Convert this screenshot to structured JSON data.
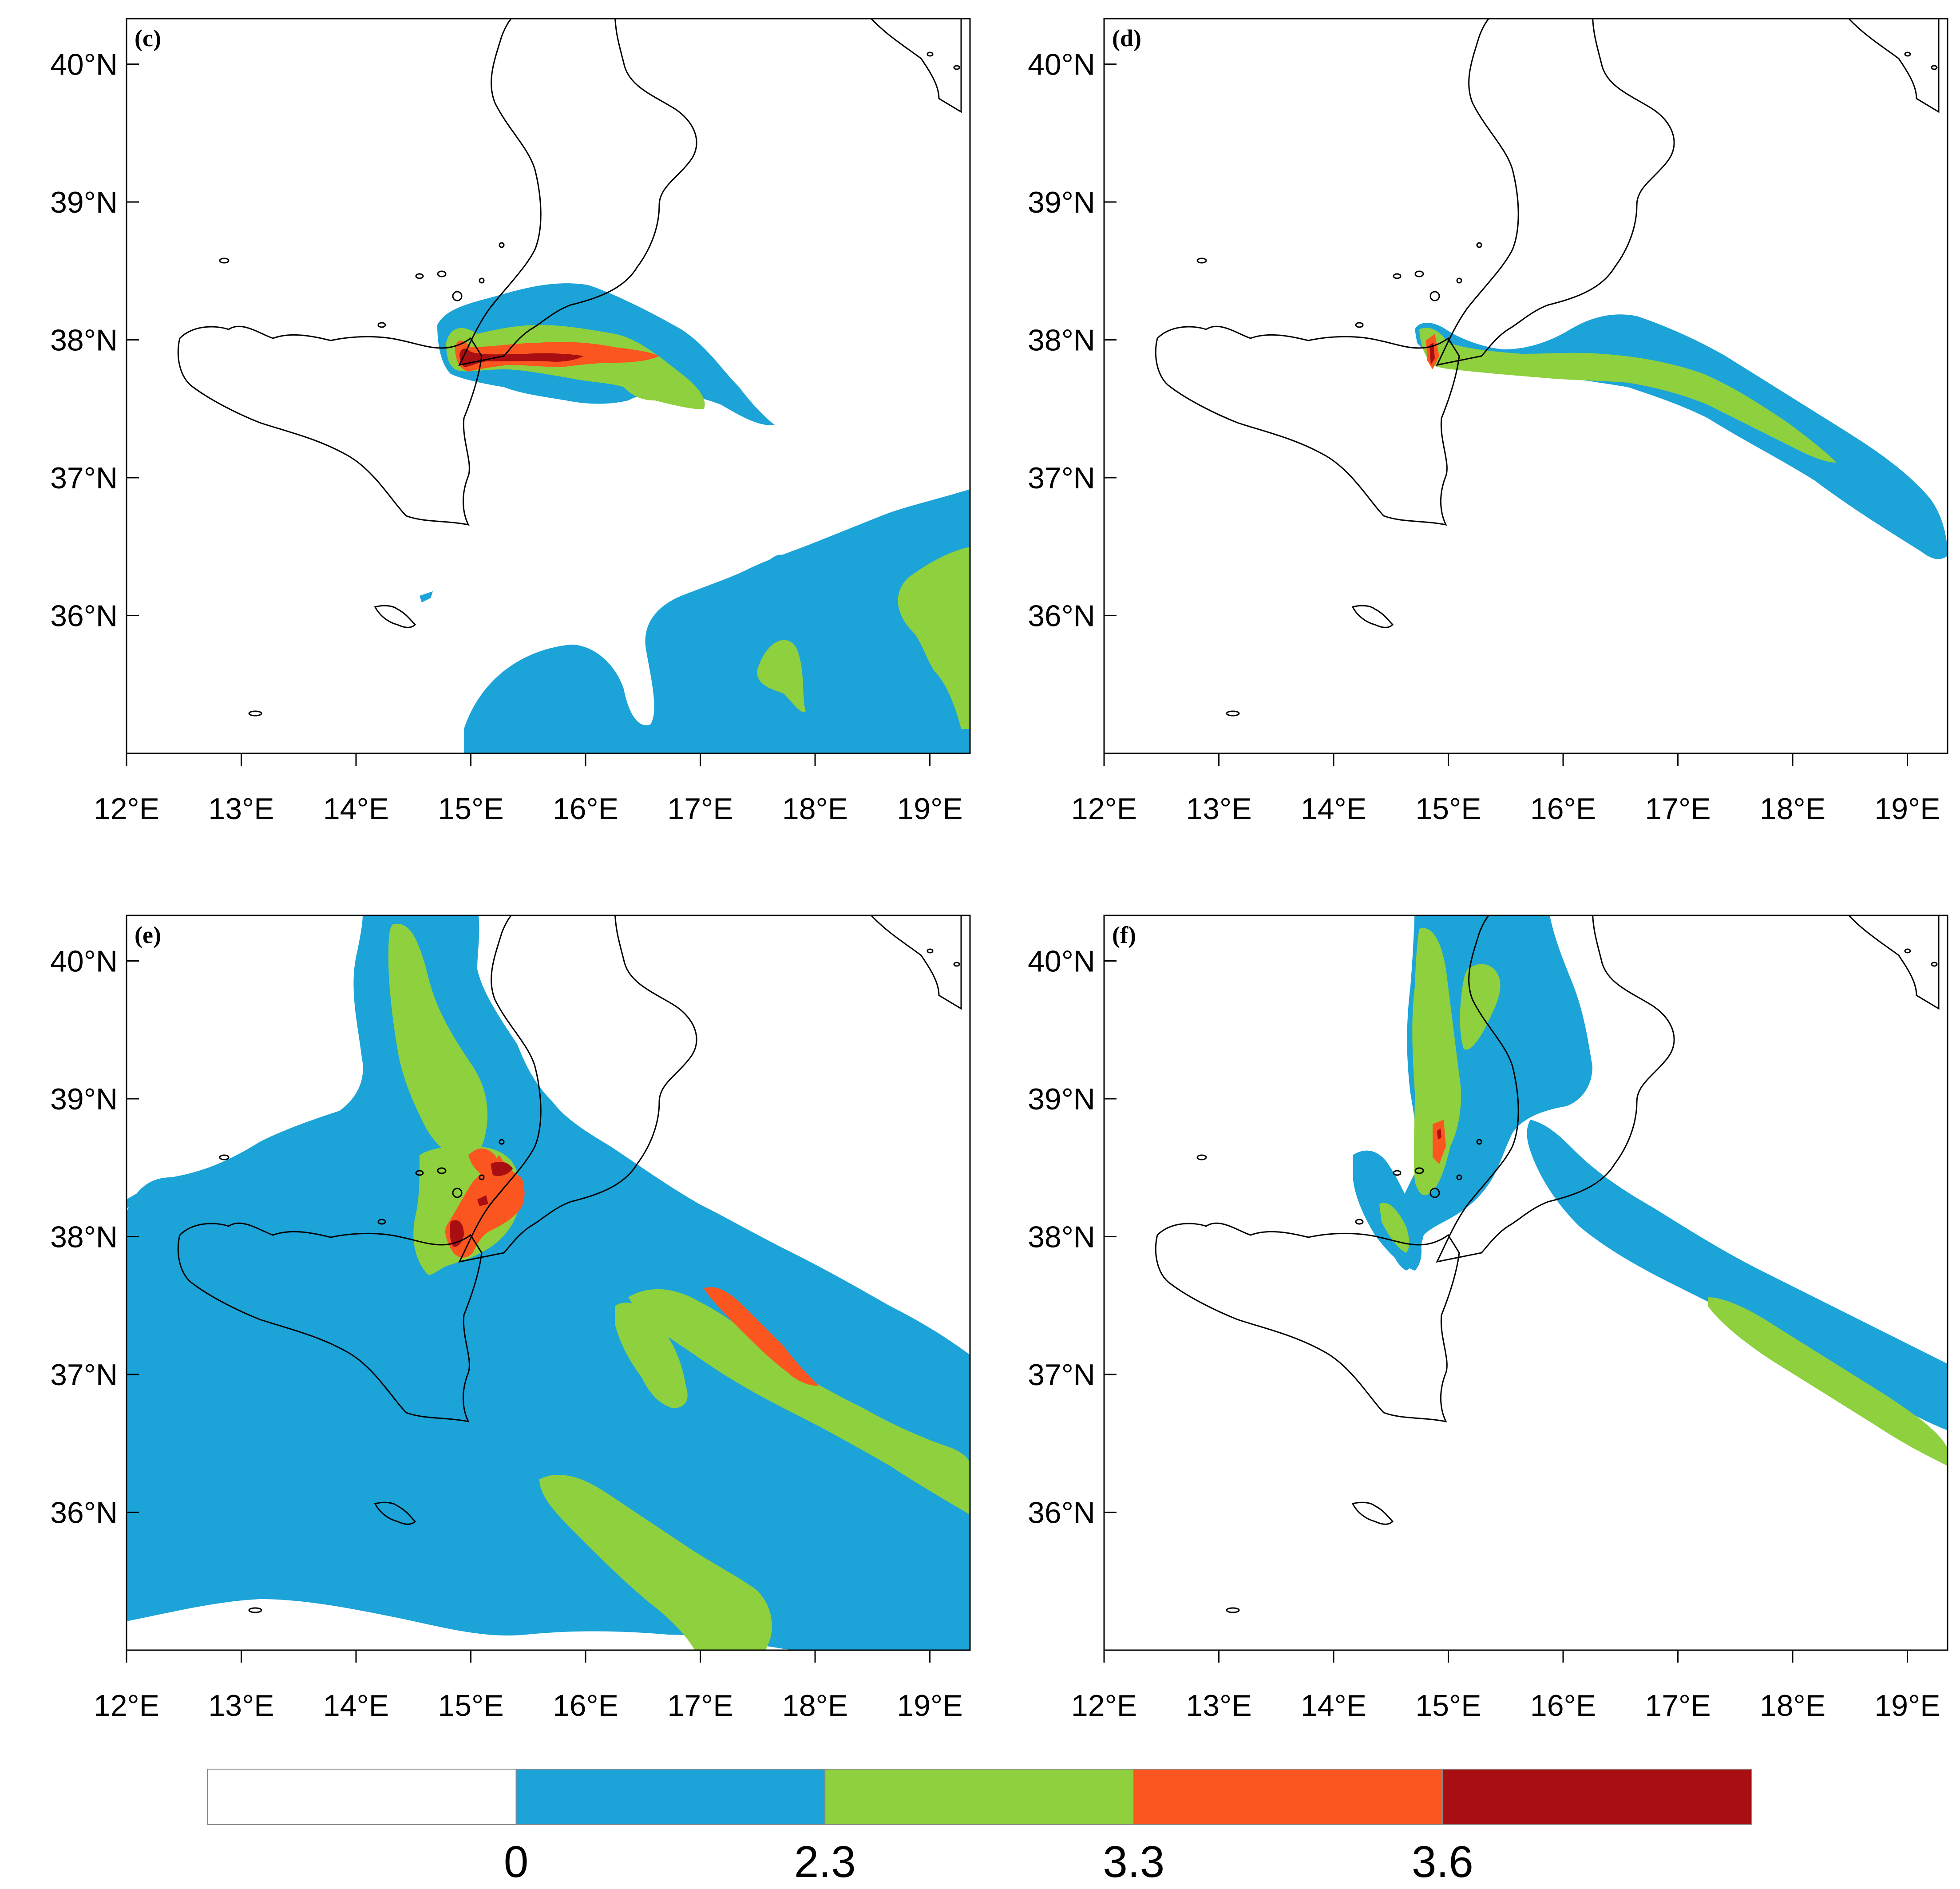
{
  "panels": [
    {
      "id": "c",
      "label": "(c)"
    },
    {
      "id": "d",
      "label": "(d)"
    },
    {
      "id": "e",
      "label": "(e)"
    },
    {
      "id": "f",
      "label": "(f)"
    }
  ],
  "lat_ticks": [
    "40°N",
    "39°N",
    "38°N",
    "37°N",
    "36°N"
  ],
  "lon_ticks": [
    "12°E",
    "13°E",
    "14°E",
    "15°E",
    "16°E",
    "17°E",
    "18°E",
    "19°E"
  ],
  "map_extent": {
    "lon_min": 12.0,
    "lon_max": 19.35,
    "lat_min": 35.0,
    "lat_max": 40.33
  },
  "colorbar": {
    "labels": [
      "0",
      "2.3",
      "3.3",
      "3.6"
    ],
    "colors": [
      "#ffffff",
      "#1ca3d8",
      "#8ed03e",
      "#fc5620",
      "#a80e12"
    ]
  }
}
